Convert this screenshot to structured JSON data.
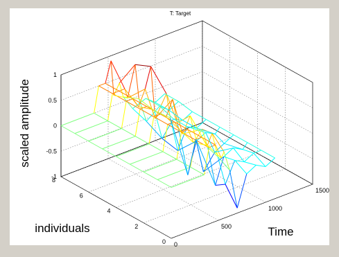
{
  "chart_data": {
    "type": "surface-3d",
    "title": "T: Target",
    "xlabel": "Time",
    "ylabel": "individuals",
    "zlabel": "scaled amplitude",
    "xlim": [
      0,
      1500
    ],
    "ylim": [
      0,
      8
    ],
    "zlim": [
      -1,
      1
    ],
    "x_ticks": [
      "0",
      "500",
      "1000",
      "1500"
    ],
    "y_ticks": [
      "0",
      "2",
      "4",
      "6",
      "8"
    ],
    "z_ticks": [
      "-1",
      "-0.5",
      "0",
      "0.5",
      "1"
    ],
    "grid": true,
    "colormap": "jet",
    "series": [
      {
        "individual": 8,
        "points": [
          [
            0,
            0
          ],
          [
            350,
            0
          ],
          [
            400,
            0.5
          ],
          [
            470,
            0.5
          ],
          [
            530,
            0.9
          ],
          [
            560,
            0.2
          ],
          [
            620,
            0.4
          ],
          [
            660,
            0.1
          ],
          [
            760,
            -0.2
          ],
          [
            900,
            -0.1
          ],
          [
            1000,
            -0.25
          ],
          [
            1100,
            -0.15
          ]
        ]
      },
      {
        "individual": 7,
        "points": [
          [
            0,
            0
          ],
          [
            350,
            0
          ],
          [
            400,
            0.5
          ],
          [
            470,
            0.5
          ],
          [
            530,
            0.5
          ],
          [
            560,
            0.3
          ],
          [
            640,
            0.9
          ],
          [
            680,
            0.2
          ],
          [
            760,
            -0.3
          ],
          [
            900,
            -0.1
          ],
          [
            1000,
            -0.25
          ],
          [
            1100,
            -0.15
          ]
        ]
      },
      {
        "individual": 6,
        "points": [
          [
            0,
            0
          ],
          [
            350,
            0
          ],
          [
            400,
            0.5
          ],
          [
            470,
            0.5
          ],
          [
            530,
            0.3
          ],
          [
            600,
            0.6
          ],
          [
            660,
            1.0
          ],
          [
            700,
            0.1
          ],
          [
            780,
            -0.5
          ],
          [
            900,
            -0.2
          ],
          [
            1000,
            -0.3
          ],
          [
            1100,
            -0.2
          ]
        ]
      },
      {
        "individual": 5,
        "points": [
          [
            0,
            0
          ],
          [
            350,
            0
          ],
          [
            400,
            0.5
          ],
          [
            470,
            0.5
          ],
          [
            530,
            0.4
          ],
          [
            560,
            0.2
          ],
          [
            680,
            0.6
          ],
          [
            720,
            0.1
          ],
          [
            800,
            -0.6
          ],
          [
            900,
            -0.2
          ],
          [
            1000,
            -0.3
          ],
          [
            1100,
            -0.2
          ]
        ]
      },
      {
        "individual": 4,
        "points": [
          [
            0,
            0
          ],
          [
            350,
            0
          ],
          [
            400,
            0.5
          ],
          [
            470,
            0.5
          ],
          [
            530,
            0.4
          ],
          [
            600,
            0.7
          ],
          [
            650,
            0.2
          ],
          [
            760,
            -0.9
          ],
          [
            850,
            -0.3
          ],
          [
            950,
            -0.2
          ],
          [
            1050,
            -0.3
          ],
          [
            1100,
            -0.2
          ]
        ]
      },
      {
        "individual": 3,
        "points": [
          [
            0,
            0
          ],
          [
            350,
            0
          ],
          [
            400,
            0.5
          ],
          [
            470,
            0.5
          ],
          [
            530,
            0.3
          ],
          [
            560,
            0.2
          ],
          [
            640,
            0.5
          ],
          [
            700,
            0.0
          ],
          [
            780,
            -0.7
          ],
          [
            900,
            -0.4
          ],
          [
            1000,
            -0.3
          ],
          [
            1100,
            -0.2
          ]
        ]
      },
      {
        "individual": 2,
        "points": [
          [
            0,
            0
          ],
          [
            350,
            0
          ],
          [
            400,
            0.5
          ],
          [
            470,
            0.5
          ],
          [
            530,
            0.2
          ],
          [
            620,
            0.4
          ],
          [
            680,
            0.0
          ],
          [
            760,
            -0.8
          ],
          [
            850,
            -0.3
          ],
          [
            950,
            -0.2
          ],
          [
            1050,
            -0.3
          ],
          [
            1100,
            -0.2
          ]
        ]
      },
      {
        "individual": 1,
        "points": [
          [
            0,
            0
          ],
          [
            350,
            0
          ],
          [
            400,
            0.5
          ],
          [
            470,
            0.5
          ],
          [
            530,
            0.3
          ],
          [
            580,
            0.5
          ],
          [
            640,
            0.0
          ],
          [
            720,
            -0.6
          ],
          [
            820,
            -0.2
          ],
          [
            920,
            -0.3
          ],
          [
            1020,
            -0.2
          ],
          [
            1100,
            -0.2
          ]
        ]
      },
      {
        "individual": 0,
        "points": [
          [
            0,
            0
          ],
          [
            350,
            0
          ],
          [
            400,
            0.5
          ],
          [
            470,
            0.5
          ],
          [
            530,
            0.2
          ],
          [
            560,
            0.3
          ],
          [
            620,
            -0.1
          ],
          [
            700,
            -0.9
          ],
          [
            800,
            -0.3
          ],
          [
            900,
            -0.2
          ],
          [
            1000,
            -0.3
          ],
          [
            1100,
            -0.2
          ]
        ]
      }
    ]
  }
}
